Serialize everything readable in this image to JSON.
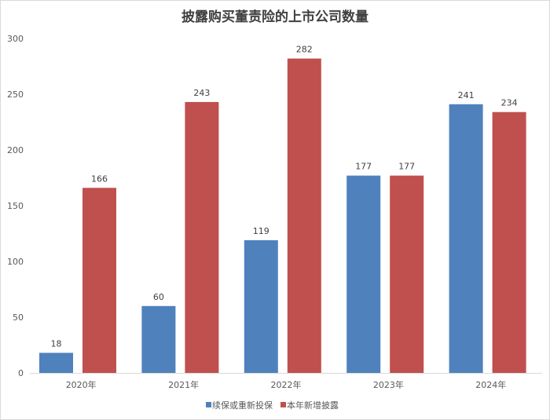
{
  "chart_data": {
    "type": "bar",
    "title": "披露购买董责险的上市公司数量",
    "categories": [
      "2020年",
      "2021年",
      "2022年",
      "2023年",
      "2024年"
    ],
    "series": [
      {
        "name": "续保或重新投保",
        "color": "#4F81BD",
        "values": [
          18,
          60,
          119,
          177,
          241
        ]
      },
      {
        "name": "本年新增披露",
        "color": "#C0504D",
        "values": [
          166,
          243,
          282,
          177,
          234
        ]
      }
    ],
    "xlabel": "",
    "ylabel": "",
    "ylim": [
      0,
      300
    ],
    "yticks": [
      0,
      50,
      100,
      150,
      200,
      250,
      300
    ],
    "grid": false,
    "data_labels": true,
    "legend": "bottom"
  }
}
